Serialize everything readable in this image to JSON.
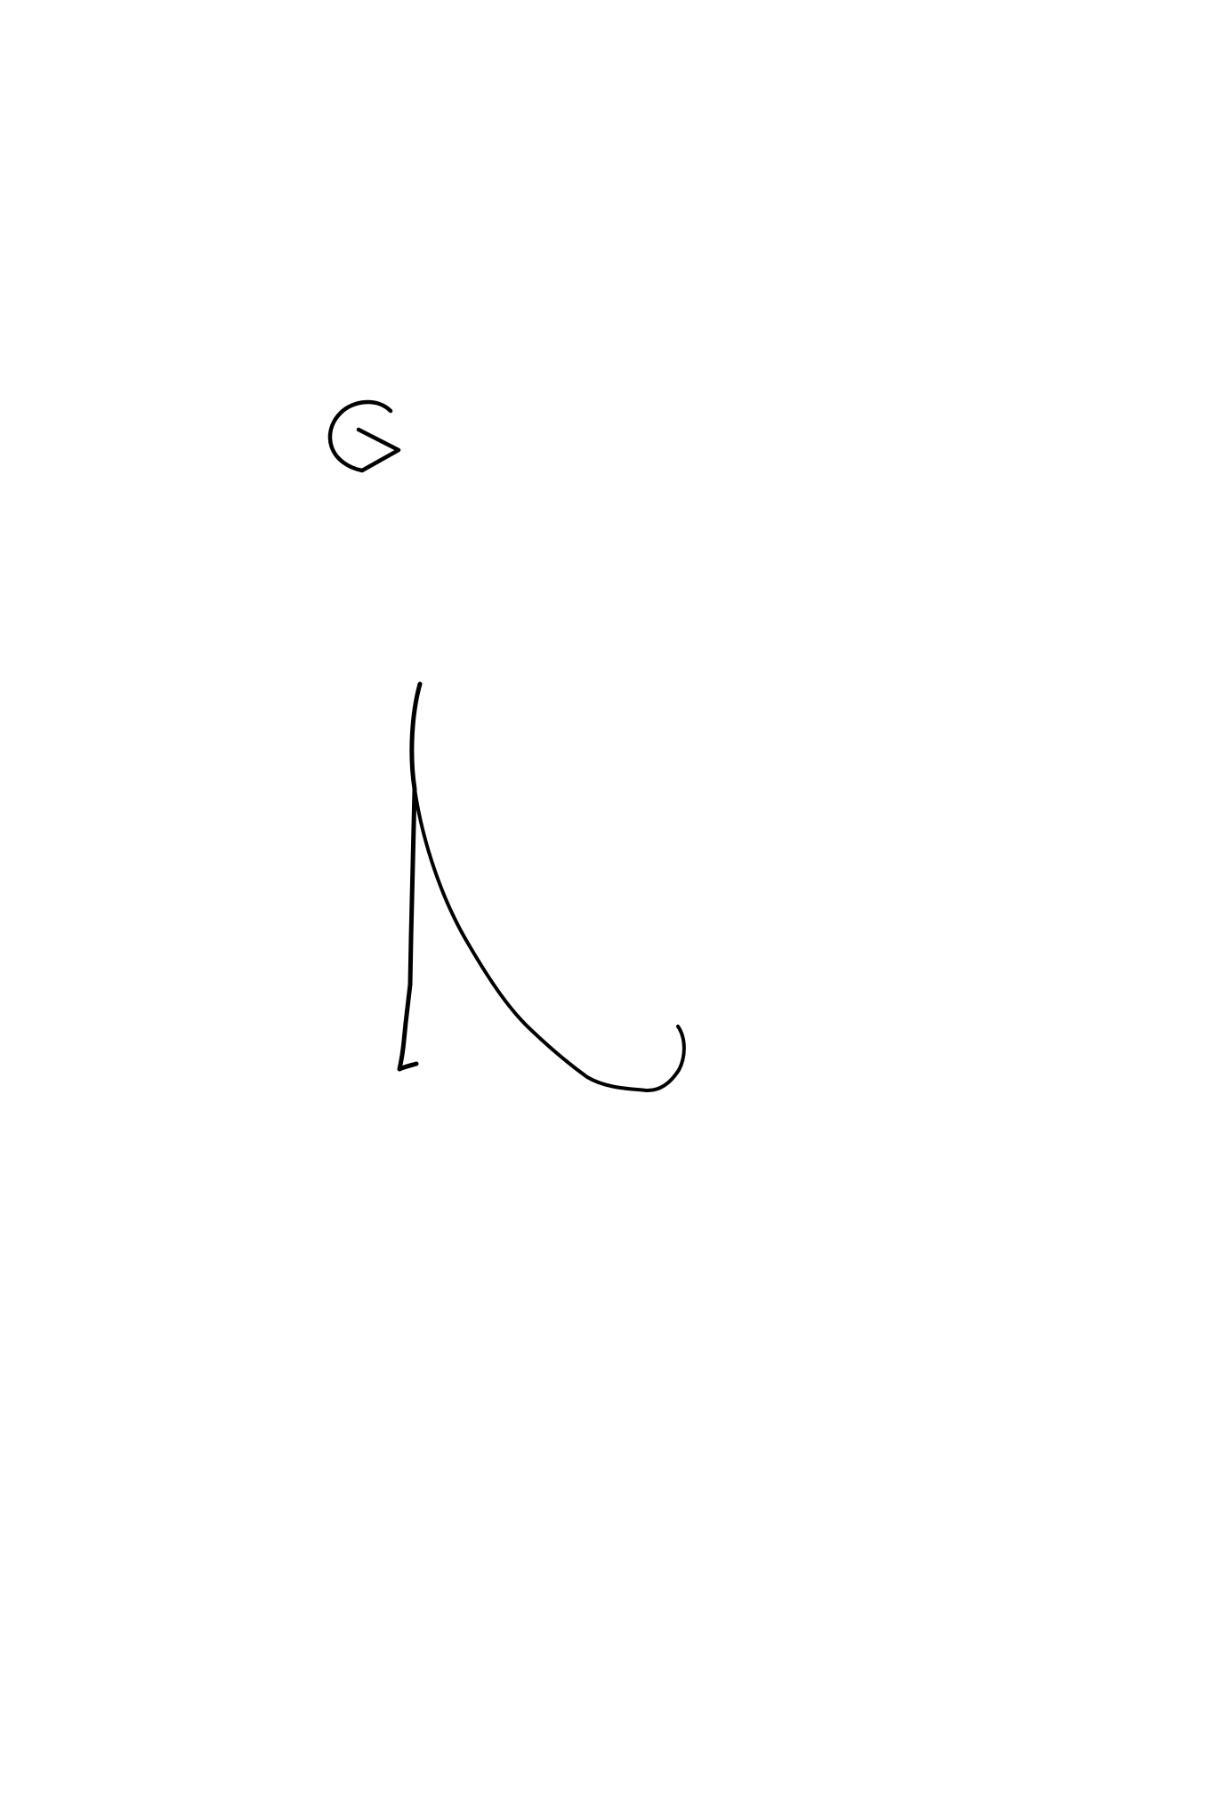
{
  "page": {
    "background_color": "#ffffff",
    "stroke_color": "#000000"
  },
  "drawing": {
    "strokes": [
      {
        "name": "small-hook-stroke"
      },
      {
        "name": "left-vertical-stroke"
      },
      {
        "name": "curved-stroke"
      }
    ]
  }
}
